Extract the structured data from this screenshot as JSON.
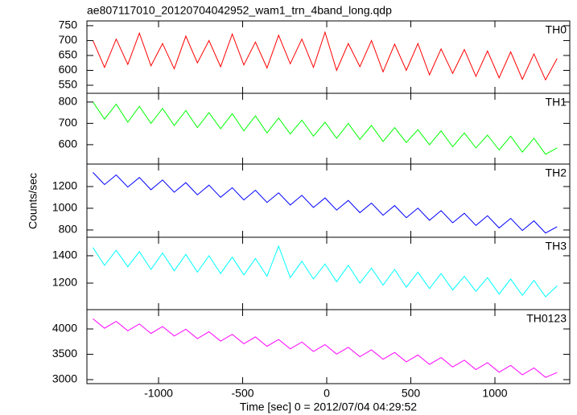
{
  "title": "ae807117010_20120704042952_wam1_trn_4band_long.qdp",
  "x_label": "Time [sec] 0 = 2012/07/04 04:29:52",
  "y_label": "Counts/sec",
  "x": [
    -1390,
    -1321,
    -1252,
    -1183,
    -1114,
    -1045,
    -976,
    -907,
    -838,
    -769,
    -700,
    -631,
    -562,
    -493,
    -424,
    -355,
    -286,
    -217,
    -148,
    -79,
    -10,
    59,
    128,
    197,
    266,
    335,
    404,
    473,
    542,
    611,
    680,
    749,
    818,
    887,
    956,
    1025,
    1094,
    1163,
    1232,
    1301,
    1370
  ],
  "xlim": [
    -1426,
    1445
  ],
  "xticks": [
    -1000,
    -500,
    0,
    500,
    1000
  ],
  "chart_data": [
    {
      "type": "line",
      "ylim": [
        523,
        766
      ],
      "yticks": [
        550,
        600,
        650,
        700,
        750
      ],
      "series": [
        {
          "name": "TH0",
          "color": "#ff0000",
          "values": [
            700,
            610,
            705,
            620,
            725,
            615,
            690,
            605,
            715,
            625,
            700,
            612,
            722,
            618,
            695,
            608,
            718,
            622,
            705,
            610,
            728,
            600,
            690,
            612,
            700,
            595,
            688,
            600,
            690,
            585,
            672,
            590,
            670,
            580,
            665,
            575,
            662,
            570,
            655,
            568,
            640
          ]
        }
      ]
    },
    {
      "type": "line",
      "ylim": [
        509,
        841
      ],
      "yticks": [
        600,
        700,
        800
      ],
      "series": [
        {
          "name": "TH1",
          "color": "#00ff00",
          "values": [
            800,
            720,
            790,
            705,
            780,
            700,
            770,
            690,
            760,
            680,
            750,
            675,
            745,
            665,
            735,
            655,
            725,
            650,
            715,
            640,
            705,
            630,
            700,
            625,
            690,
            615,
            680,
            610,
            670,
            600,
            665,
            590,
            655,
            585,
            645,
            575,
            640,
            565,
            630,
            555,
            585
          ]
        }
      ]
    },
    {
      "type": "line",
      "ylim": [
        733,
        1407
      ],
      "yticks": [
        800,
        1000,
        1200
      ],
      "series": [
        {
          "name": "TH2",
          "color": "#0000ff",
          "values": [
            1330,
            1218,
            1307,
            1195,
            1283,
            1171,
            1260,
            1148,
            1236,
            1124,
            1213,
            1101,
            1189,
            1077,
            1166,
            1054,
            1142,
            1030,
            1119,
            1007,
            1095,
            983,
            1072,
            960,
            1048,
            936,
            1025,
            913,
            1001,
            889,
            978,
            866,
            954,
            842,
            931,
            819,
            907,
            795,
            884,
            772,
            830
          ]
        }
      ]
    },
    {
      "type": "line",
      "ylim": [
        1006,
        1535
      ],
      "yticks": [
        1200,
        1400
      ],
      "series": [
        {
          "name": "TH3",
          "color": "#00ffff",
          "values": [
            1460,
            1330,
            1440,
            1320,
            1430,
            1300,
            1420,
            1290,
            1410,
            1280,
            1400,
            1270,
            1390,
            1260,
            1380,
            1250,
            1470,
            1240,
            1360,
            1230,
            1340,
            1210,
            1330,
            1200,
            1310,
            1185,
            1300,
            1170,
            1280,
            1160,
            1270,
            1150,
            1250,
            1140,
            1240,
            1120,
            1230,
            1110,
            1220,
            1100,
            1180
          ]
        }
      ]
    },
    {
      "type": "line",
      "ylim": [
        2921,
        4381
      ],
      "yticks": [
        3000,
        3500,
        4000
      ],
      "series": [
        {
          "name": "TH0123",
          "color": "#ff00ff",
          "values": [
            4200,
            4014,
            4149,
            3963,
            4098,
            3912,
            4047,
            3861,
            3996,
            3810,
            3945,
            3759,
            3894,
            3708,
            3843,
            3657,
            3792,
            3606,
            3741,
            3555,
            3690,
            3504,
            3639,
            3453,
            3588,
            3402,
            3537,
            3351,
            3486,
            3300,
            3435,
            3249,
            3384,
            3198,
            3333,
            3147,
            3282,
            3096,
            3231,
            3045,
            3140
          ]
        }
      ]
    }
  ]
}
